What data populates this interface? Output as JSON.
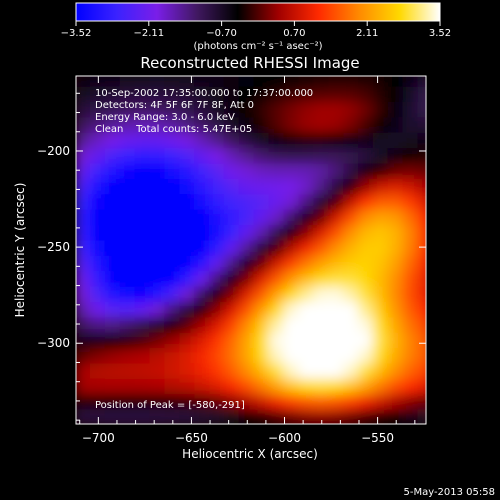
{
  "colorbar": {
    "tick_labels": [
      "−3.52",
      "−2.11",
      "−0.70",
      "0.70",
      "2.11",
      "3.52"
    ],
    "unit_label": "(photons cm⁻² s⁻¹ asec⁻²)"
  },
  "colors": {
    "colormap": [
      "#0000ff",
      "#3a22ff",
      "#7a1ee8",
      "#401860",
      "#000000",
      "#a00000",
      "#ff2a00",
      "#ff8a00",
      "#ffd800",
      "#ffffff"
    ],
    "axes": "#ffffff",
    "background": "#000000"
  },
  "chart_data": {
    "type": "heatmap",
    "title": "Reconstructed RHESSI Image",
    "xlabel": "Heliocentric X (arcsec)",
    "ylabel": "Heliocentric Y (arcsec)",
    "xlim": [
      -712,
      -524
    ],
    "ylim": [
      -342,
      -161
    ],
    "x_ticks": [
      -700,
      -650,
      -600,
      -550
    ],
    "y_ticks": [
      -200,
      -250,
      -300
    ],
    "x_tick_labels": [
      "−700",
      "−650",
      "−600",
      "−550"
    ],
    "y_tick_labels": [
      "−200",
      "−250",
      "−300"
    ],
    "value_range": [
      -3.52,
      3.52
    ],
    "annotation_lines": [
      "10-Sep-2002 17:35:00.000 to 17:37:00.000",
      "Detectors: 4F 5F 6F 7F 8F, Att 0",
      "Energy Range: 3.0 - 6.0 keV",
      "Clean    Total counts: 5.47E+05"
    ],
    "peak_label": "Position of Peak = [-580,-291]",
    "peak": [
      -580,
      -291
    ],
    "timestamp": "5-May-2013 05:58"
  }
}
